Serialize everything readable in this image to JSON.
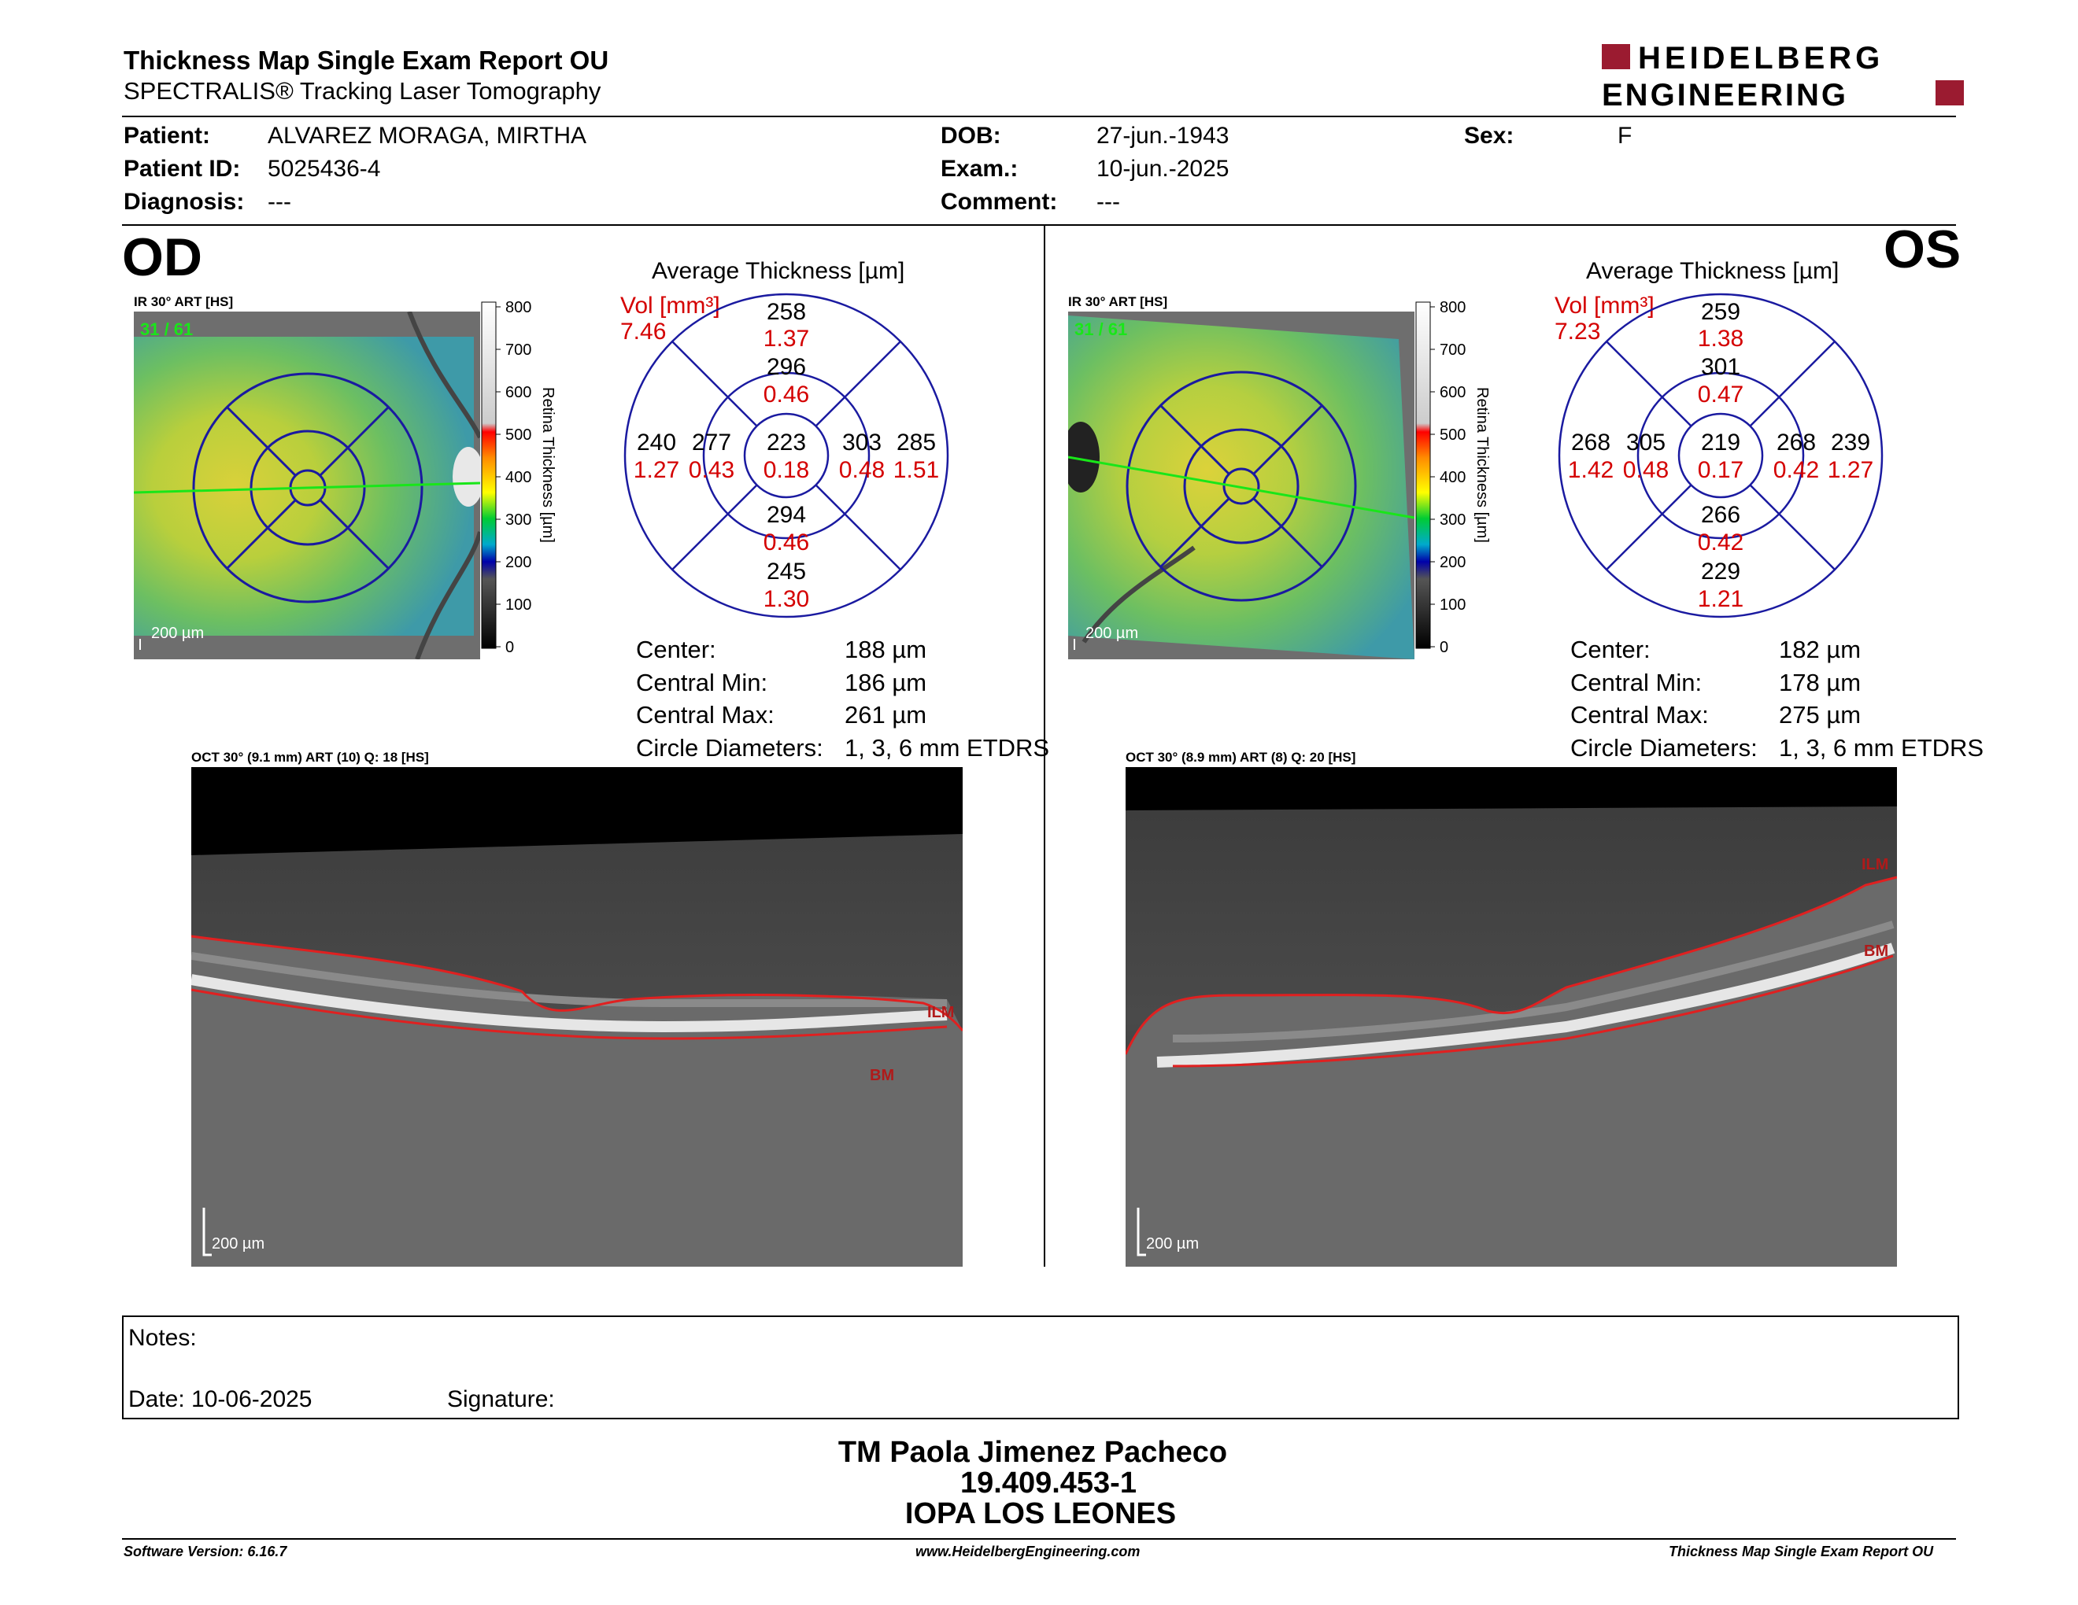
{
  "header": {
    "title": "Thickness Map Single Exam Report OU",
    "subtitle": "SPECTRALIS® Tracking Laser Tomography",
    "logo_line1": "HEIDELBERG",
    "logo_line2": "ENGINEERING"
  },
  "patient": {
    "patient_label": "Patient:",
    "patient_value": "ALVAREZ MORAGA, MIRTHA",
    "id_label": "Patient ID:",
    "id_value": "5025436-4",
    "diagnosis_label": "Diagnosis:",
    "diagnosis_value": "---",
    "dob_label": "DOB:",
    "dob_value": "27-jun.-1943",
    "exam_label": "Exam.:",
    "exam_value": "10-jun.-2025",
    "comment_label": "Comment:",
    "comment_value": "---",
    "sex_label": "Sex:",
    "sex_value": "F"
  },
  "od": {
    "eye_label": "OD",
    "ir_caption": "IR 30° ART [HS]",
    "frame_count": "31 / 61",
    "scale_label": "200 µm",
    "avg_title": "Average Thickness [µm]",
    "vol_label": "Vol [mm³]",
    "vol_value": "7.46",
    "grid": {
      "center": {
        "t": "223",
        "v": "0.18"
      },
      "inner_sup": {
        "t": "296",
        "v": "0.46"
      },
      "inner_inf": {
        "t": "294",
        "v": "0.46"
      },
      "inner_temp": {
        "t": "277",
        "v": "0.43"
      },
      "inner_nas": {
        "t": "303",
        "v": "0.48"
      },
      "outer_sup": {
        "t": "258",
        "v": "1.37"
      },
      "outer_inf": {
        "t": "245",
        "v": "1.30"
      },
      "outer_temp": {
        "t": "240",
        "v": "1.27"
      },
      "outer_nas": {
        "t": "285",
        "v": "1.51"
      }
    },
    "stats": {
      "center_label": "Center:",
      "center_value": "188 µm",
      "min_label": "Central Min:",
      "min_value": "186 µm",
      "max_label": "Central Max:",
      "max_value": "261 µm",
      "diam_label": "Circle Diameters:",
      "diam_value": "1, 3, 6 mm ETDRS"
    },
    "oct_caption": "OCT 30° (9.1 mm) ART (10) Q: 18 [HS]",
    "oct_scale": "200 µm",
    "ilm_label": "ILM",
    "bm_label": "BM"
  },
  "os": {
    "eye_label": "OS",
    "ir_caption": "IR 30° ART [HS]",
    "frame_count": "31 / 61",
    "scale_label": "200 µm",
    "avg_title": "Average Thickness [µm]",
    "vol_label": "Vol [mm³]",
    "vol_value": "7.23",
    "grid": {
      "center": {
        "t": "219",
        "v": "0.17"
      },
      "inner_sup": {
        "t": "301",
        "v": "0.47"
      },
      "inner_inf": {
        "t": "266",
        "v": "0.42"
      },
      "inner_temp": {
        "t": "268",
        "v": "0.42"
      },
      "inner_nas": {
        "t": "305",
        "v": "0.48"
      },
      "outer_sup": {
        "t": "259",
        "v": "1.38"
      },
      "outer_inf": {
        "t": "229",
        "v": "1.21"
      },
      "outer_temp": {
        "t": "239",
        "v": "1.27"
      },
      "outer_nas": {
        "t": "268",
        "v": "1.42"
      }
    },
    "stats": {
      "center_label": "Center:",
      "center_value": "182 µm",
      "min_label": "Central Min:",
      "min_value": "178 µm",
      "max_label": "Central Max:",
      "max_value": "275 µm",
      "diam_label": "Circle Diameters:",
      "diam_value": "1, 3, 6 mm ETDRS"
    },
    "oct_caption": "OCT 30° (8.9 mm) ART (8) Q: 20 [HS]",
    "oct_scale": "200 µm",
    "ilm_label": "ILM",
    "bm_label": "BM"
  },
  "colorbar": {
    "ticks": [
      "800",
      "700",
      "600",
      "500",
      "400",
      "300",
      "200",
      "100",
      "0"
    ],
    "label": "Retina Thickness [µm]"
  },
  "notes": {
    "notes_label": "Notes:",
    "date_label": "Date: 10-06-2025",
    "signature_label": "Signature:"
  },
  "signer": {
    "name": "TM Paola Jimenez Pacheco",
    "rut": "19.409.453-1",
    "institution": "IOPA LOS LEONES"
  },
  "footer": {
    "software": "Software Version: 6.16.7",
    "website": "www.HeidelbergEngineering.com",
    "report": "Thickness Map Single Exam Report OU"
  },
  "colors": {
    "accent": "#9b1b30",
    "grid_blue": "#1a1aa0",
    "vol_red": "#d40000"
  }
}
